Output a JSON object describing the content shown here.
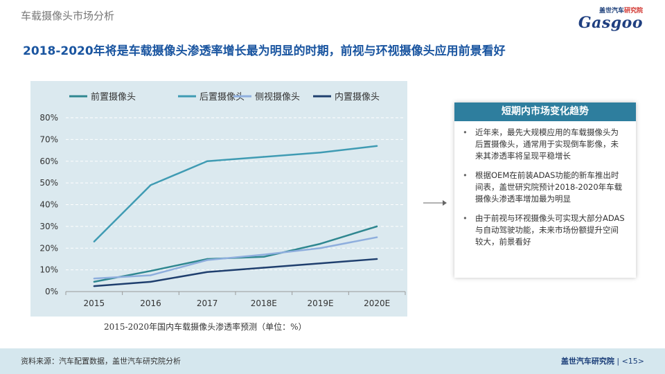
{
  "header": {
    "section": "车载摄像头市场分析"
  },
  "brand": {
    "top_left": "盖世汽车",
    "top_right": "研究院",
    "wordmark": "Gasgoo"
  },
  "headline": "2018-2020年将是车载摄像头渗透率增长最为明显的时期，前视与环视摄像头应用前景看好",
  "chart_data": {
    "type": "line",
    "categories": [
      "2015",
      "2016",
      "2017",
      "2018E",
      "2019E",
      "2020E"
    ],
    "series": [
      {
        "name": "前置摄像头",
        "color": "#2f8790",
        "values": [
          4.5,
          9.5,
          15,
          16,
          22,
          30
        ]
      },
      {
        "name": "后置摄像头",
        "color": "#3f9bb3",
        "values": [
          23,
          49,
          60,
          62,
          64,
          67
        ]
      },
      {
        "name": "侧视摄像头",
        "color": "#8eaedd",
        "values": [
          6,
          7.5,
          14.5,
          17,
          20,
          25
        ]
      },
      {
        "name": "内置摄像头",
        "color": "#1f3f6e",
        "values": [
          2.5,
          4.5,
          9,
          11,
          13,
          15
        ]
      }
    ],
    "y_ticks": [
      "0%",
      "10%",
      "20%",
      "30%",
      "40%",
      "50%",
      "60%",
      "70%",
      "80%"
    ],
    "ylim": [
      0,
      80
    ],
    "grid": true,
    "legend_position": "top"
  },
  "caption": "2015-2020年国内车载摄像头渗透率预测（单位：%）",
  "sidebar": {
    "title": "短期内市场变化趋势",
    "bullets": [
      "近年来，最先大规模应用的车载摄像头为后置摄像头，通常用于实现倒车影像，未来其渗透率将呈现平稳增长",
      "根据OEM在前装ADAS功能的新车推出时间表，盖世研究院预计2018-2020年车载摄像头渗透率增加最为明显",
      "由于前视与环视摄像头可实现大部分ADAS与自动驾驶功能，未来市场份额提升空间较大，前景看好"
    ]
  },
  "footer": {
    "source": "资料来源：汽车配置数据，盖世汽车研究院分析",
    "org": "盖世汽车研究院",
    "page": "<15>"
  }
}
